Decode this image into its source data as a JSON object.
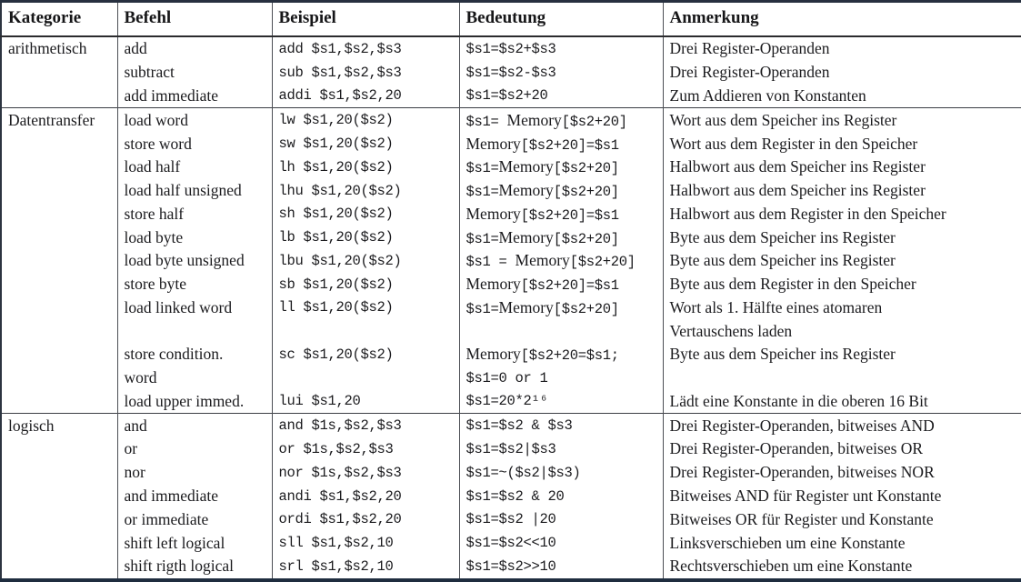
{
  "colors": {
    "page_background": "#ffffff",
    "text": "#1b1b1e",
    "grid_line": "#4c4f55",
    "section_line": "#3b3e44",
    "outer_bottom_border": "#1f2d3f"
  },
  "table": {
    "headers": [
      "Kategorie",
      "Befehl",
      "Beispiel",
      "Bedeutung",
      "Anmerkung"
    ],
    "sections": [
      {
        "category": "arithmetisch",
        "rows": [
          {
            "befehl": "add",
            "beispiel": "add $s1,$s2,$s3",
            "bedeutung": "$s1=$s2+$s3",
            "anmerkung": "Drei Register-Operanden"
          },
          {
            "befehl": "subtract",
            "beispiel": "sub $s1,$s2,$s3",
            "bedeutung": "$s1=$s2-$s3",
            "anmerkung": "Drei Register-Operanden"
          },
          {
            "befehl": "add immediate",
            "beispiel": "addi $s1,$s2,20",
            "bedeutung": "$s1=$s2+20",
            "anmerkung": "Zum Addieren von Konstanten"
          }
        ]
      },
      {
        "category": "Datentransfer",
        "rows": [
          {
            "befehl": "load word",
            "beispiel": "lw $s1,20($s2)",
            "bedeutung": "$s1= Memory[$s2+20]",
            "anmerkung": "Wort aus dem Speicher ins Register"
          },
          {
            "befehl": "store word",
            "beispiel": "sw $s1,20($s2)",
            "bedeutung": "Memory[$s2+20]=$s1",
            "anmerkung": "Wort aus dem Register in den Speicher"
          },
          {
            "befehl": "load half",
            "beispiel": "lh $s1,20($s2)",
            "bedeutung": "$s1=Memory[$s2+20]",
            "anmerkung": "Halbwort aus dem Speicher ins Register"
          },
          {
            "befehl": "load half unsigned",
            "beispiel": "lhu $s1,20($s2)",
            "bedeutung": "$s1=Memory[$s2+20]",
            "anmerkung": "Halbwort aus dem Speicher ins Register"
          },
          {
            "befehl": "store half",
            "beispiel": "sh $s1,20($s2)",
            "bedeutung": "Memory[$s2+20]=$s1",
            "anmerkung": "Halbwort aus dem Register in den Speicher"
          },
          {
            "befehl": "load byte",
            "beispiel": "lb $s1,20($s2)",
            "bedeutung": "$s1=Memory[$s2+20]",
            "anmerkung": "Byte aus dem Speicher ins Register"
          },
          {
            "befehl": "load byte unsigned",
            "beispiel": "lbu $s1,20($s2)",
            "bedeutung": "$s1 = Memory[$s2+20]",
            "anmerkung": "Byte aus dem Speicher ins Register"
          },
          {
            "befehl": "store byte",
            "beispiel": "sb $s1,20($s2)",
            "bedeutung": "Memory[$s2+20]=$s1",
            "anmerkung": "Byte aus dem Register in den Speicher"
          },
          {
            "befehl": "load linked word",
            "beispiel": "ll $s1,20($s2)",
            "bedeutung": "$s1=Memory[$s2+20]",
            "anmerkung": "Wort als 1. Hälfte eines atomaren"
          },
          {
            "befehl": "",
            "beispiel": "",
            "bedeutung": "",
            "anmerkung": "Vertauschens laden"
          },
          {
            "befehl": "store condition.",
            "beispiel": "sc $s1,20($s2)",
            "bedeutung": "Memory[$s2+20=$s1;",
            "anmerkung": "Byte aus dem Speicher ins Register"
          },
          {
            "befehl": "word",
            "beispiel": "",
            "bedeutung": "$s1=0 or 1",
            "anmerkung": ""
          },
          {
            "befehl": "load upper immed.",
            "beispiel": "lui $s1,20",
            "bedeutung": "$s1=20*2¹⁶",
            "anmerkung": "Lädt eine Konstante in die oberen 16 Bit"
          }
        ]
      },
      {
        "category": "logisch",
        "rows": [
          {
            "befehl": "and",
            "beispiel": "and $1s,$s2,$s3",
            "bedeutung": "$s1=$s2 & $s3",
            "anmerkung": "Drei Register-Operanden, bitweises AND"
          },
          {
            "befehl": "or",
            "beispiel": "or $1s,$s2,$s3",
            "bedeutung": "$s1=$s2|$s3",
            "anmerkung": "Drei Register-Operanden, bitweises OR"
          },
          {
            "befehl": "nor",
            "beispiel": "nor $1s,$s2,$s3",
            "bedeutung": "$s1=~($s2|$s3)",
            "anmerkung": "Drei Register-Operanden, bitweises NOR"
          },
          {
            "befehl": "and immediate",
            "beispiel": "andi $s1,$s2,20",
            "bedeutung": "$s1=$s2 & 20",
            "anmerkung": "Bitweises AND für Register unt Konstante"
          },
          {
            "befehl": "or immediate",
            "beispiel": "ordi $s1,$s2,20",
            "bedeutung": "$s1=$s2 |20",
            "anmerkung": "Bitweises OR für Register und Konstante"
          },
          {
            "befehl": "shift left logical",
            "beispiel": "sll $s1,$s2,10",
            "bedeutung": "$s1=$s2<<10",
            "anmerkung": "Linksverschieben um eine Konstante"
          },
          {
            "befehl": "shift rigth logical",
            "beispiel": "srl $s1,$s2,10",
            "bedeutung": "$s1=$s2>>10",
            "anmerkung": "Rechtsverschieben um eine Konstante"
          }
        ]
      }
    ]
  }
}
